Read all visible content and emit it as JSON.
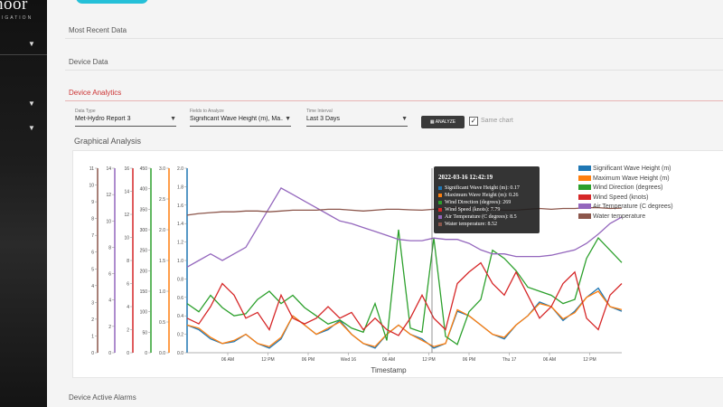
{
  "sidebar": {
    "brand": "hoor",
    "brand_sub": "IGATION"
  },
  "sections": {
    "most_recent": "Most Recent Data",
    "device_data": "Device Data",
    "device_analytics": "Device Analytics",
    "graphical_analysis": "Graphical Analysis",
    "device_active_alarms": "Device Active Alarms"
  },
  "controls": {
    "data_type": {
      "label": "Data Type",
      "value": "Met-Hydro Report 3"
    },
    "fields": {
      "label": "Fields to Analyze",
      "value": "Significant Wave Height (m), Ma..."
    },
    "interval": {
      "label": "Time Interval",
      "value": "Last 3 Days"
    },
    "analyze_label": "ANALYZE",
    "same_chart_label": "Same chart",
    "same_chart_checked": true
  },
  "tooltip": {
    "title": "2022-03-16 12:42:19",
    "rows": [
      {
        "text": "Significant Wave Height (m): 0.17",
        "color": "#1f77b4"
      },
      {
        "text": "Maximum Wave Height (m): 0.26",
        "color": "#ff7f0e"
      },
      {
        "text": "Wind Direction (degrees): 269",
        "color": "#2ca02c"
      },
      {
        "text": "Wind Speed (knots): 7.79",
        "color": "#d62728"
      },
      {
        "text": "Air Temperature (C degrees): 8.5",
        "color": "#9467bd"
      },
      {
        "text": "Water temperature: 8.52",
        "color": "#8c564b"
      }
    ]
  },
  "chart_data": {
    "type": "line",
    "title": "",
    "xlabel": "Timestamp",
    "x_ticks": [
      "06 AM",
      "12 PM",
      "06 PM",
      "Wed 16",
      "06 AM",
      "12 PM",
      "06 PM",
      "Thu 17",
      "06 AM",
      "12 PM"
    ],
    "y_axes": [
      {
        "name": "Significant Wave Height (m)",
        "color": "#1f77b4",
        "ticks": [
          "0.0",
          "0.2",
          "0.4",
          "0.6",
          "0.8",
          "1.0",
          "1.2",
          "1.4",
          "1.6",
          "1.8",
          "2.0"
        ],
        "ylim": [
          0,
          2.0
        ]
      },
      {
        "name": "Maximum Wave Height (m)",
        "color": "#ff7f0e",
        "ticks": [
          "0.0",
          "0.5",
          "1.0",
          "1.5",
          "2.0",
          "2.5",
          "3.0"
        ],
        "ylim": [
          0,
          3.0
        ]
      },
      {
        "name": "Wind Direction (degrees)",
        "color": "#2ca02c",
        "ticks": [
          "0",
          "50",
          "100",
          "150",
          "200",
          "250",
          "300",
          "350",
          "400",
          "450"
        ],
        "ylim": [
          0,
          450
        ]
      },
      {
        "name": "Wind Speed (knots)",
        "color": "#d62728",
        "ticks": [
          "0",
          "2",
          "4",
          "6",
          "8",
          "10",
          "12",
          "14",
          "16"
        ],
        "ylim": [
          0,
          16
        ]
      },
      {
        "name": "Air Temperature (C degrees)",
        "color": "#9467bd",
        "ticks": [
          "0",
          "2",
          "4",
          "6",
          "8",
          "10",
          "12",
          "14"
        ],
        "ylim": [
          0,
          14
        ]
      },
      {
        "name": "Water temperature",
        "color": "#8c564b",
        "ticks": [
          "0",
          "1",
          "2",
          "3",
          "4",
          "5",
          "6",
          "7",
          "8",
          "9",
          "10",
          "11"
        ],
        "ylim": [
          0,
          11
        ]
      }
    ],
    "legend_position": "right",
    "series": [
      {
        "name": "Significant Wave Height (m)",
        "color": "#1f77b4",
        "values": [
          0.3,
          0.25,
          0.15,
          0.1,
          0.12,
          0.2,
          0.1,
          0.05,
          0.15,
          0.4,
          0.3,
          0.2,
          0.25,
          0.35,
          0.2,
          0.1,
          0.05,
          0.2,
          0.3,
          0.2,
          0.15,
          0.05,
          0.1,
          0.45,
          0.4,
          0.3,
          0.2,
          0.15,
          0.3,
          0.4,
          0.55,
          0.5,
          0.35,
          0.45,
          0.6,
          0.7,
          0.5,
          0.45
        ]
      },
      {
        "name": "Maximum Wave Height (m)",
        "color": "#ff7f0e",
        "values": [
          0.45,
          0.4,
          0.25,
          0.15,
          0.2,
          0.3,
          0.15,
          0.1,
          0.25,
          0.6,
          0.45,
          0.3,
          0.4,
          0.5,
          0.3,
          0.15,
          0.1,
          0.3,
          0.45,
          0.3,
          0.2,
          0.1,
          0.15,
          0.7,
          0.6,
          0.45,
          0.3,
          0.25,
          0.45,
          0.6,
          0.8,
          0.75,
          0.55,
          0.65,
          0.9,
          1.0,
          0.75,
          0.7
        ]
      },
      {
        "name": "Wind Direction (degrees)",
        "color": "#2ca02c",
        "values": [
          120,
          100,
          140,
          110,
          90,
          95,
          130,
          150,
          120,
          140,
          110,
          90,
          70,
          80,
          60,
          50,
          120,
          30,
          300,
          60,
          50,
          280,
          40,
          20,
          100,
          130,
          250,
          230,
          200,
          160,
          150,
          140,
          120,
          130,
          230,
          280,
          250,
          220
        ]
      },
      {
        "name": "Wind Speed (knots)",
        "color": "#d62728",
        "values": [
          3,
          2.5,
          4,
          6,
          5,
          3,
          3.5,
          2,
          5,
          3,
          2.5,
          3,
          4,
          3,
          3.5,
          2,
          3,
          2,
          1.5,
          3,
          5,
          3,
          2,
          6,
          7,
          7.8,
          6,
          5,
          7,
          5,
          3,
          4,
          6,
          7,
          3,
          2,
          5,
          6
        ]
      },
      {
        "name": "Air Temperature (C degrees)",
        "color": "#9467bd",
        "values": [
          6.5,
          7,
          7.5,
          7,
          7.5,
          8,
          9.5,
          11,
          12.5,
          12,
          11.5,
          11,
          10.5,
          10,
          9.8,
          9.5,
          9.2,
          8.9,
          8.6,
          8.5,
          8.5,
          8.7,
          8.6,
          8.6,
          8.3,
          7.8,
          7.5,
          7.5,
          7.3,
          7.3,
          7.3,
          7.4,
          7.6,
          7.8,
          8.3,
          9,
          9.8,
          10.3
        ]
      },
      {
        "name": "Water temperature",
        "color": "#8c564b",
        "values": [
          8.2,
          8.3,
          8.35,
          8.4,
          8.4,
          8.45,
          8.45,
          8.4,
          8.45,
          8.5,
          8.5,
          8.5,
          8.55,
          8.55,
          8.5,
          8.45,
          8.5,
          8.55,
          8.55,
          8.52,
          8.5,
          8.55,
          8.6,
          8.65,
          8.6,
          8.6,
          8.55,
          8.5,
          8.5,
          8.55,
          8.6,
          8.55,
          8.6,
          8.6,
          8.65,
          8.65,
          8.6,
          8.62
        ]
      }
    ]
  }
}
